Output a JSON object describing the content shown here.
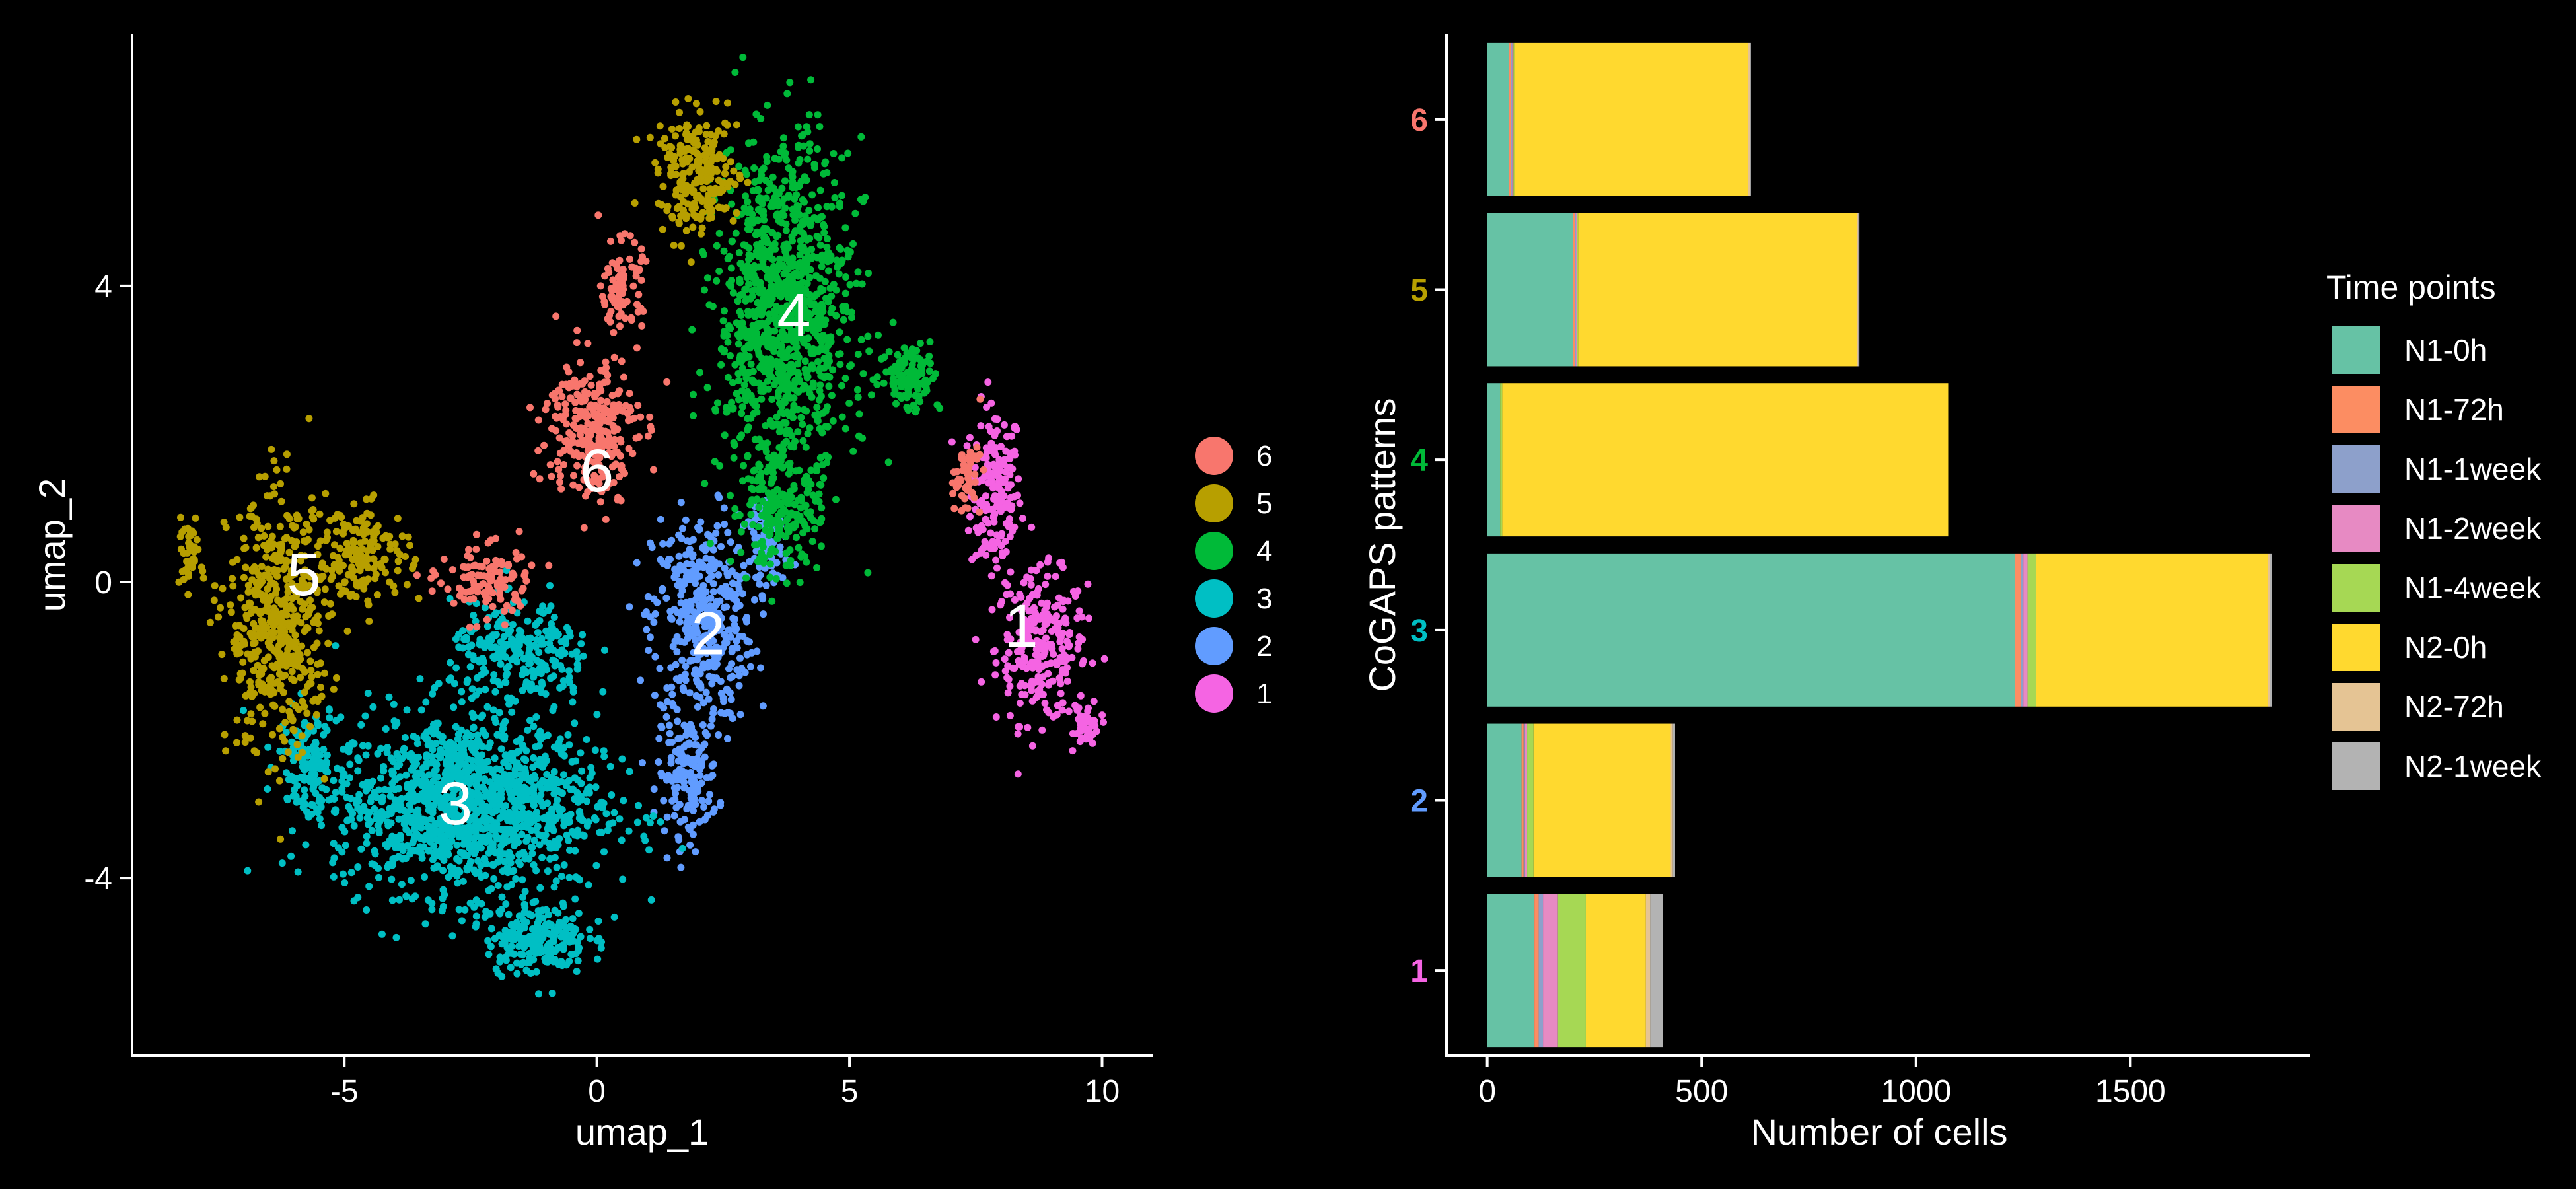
{
  "colors": {
    "background": "#000000",
    "axis": "#ffffff",
    "text": "#ffffff",
    "cluster": {
      "6": "#F8766D",
      "5": "#B79F00",
      "4": "#00BA38",
      "3": "#00BFC4",
      "2": "#619CFF",
      "1": "#F564E3"
    },
    "time_points": [
      "#66C2A5",
      "#FC8D62",
      "#8DA0CB",
      "#E78AC3",
      "#A6D854",
      "#FFD92F",
      "#E5C494",
      "#B3B3B3"
    ]
  },
  "chart_data": [
    {
      "type": "scatter",
      "xlabel": "umap_1",
      "ylabel": "umap_2",
      "xlim": [
        -9.2,
        11.0
      ],
      "ylim": [
        -6.4,
        7.4
      ],
      "xticks": [
        -5,
        0,
        5,
        10
      ],
      "yticks": [
        -4,
        0,
        4
      ],
      "xtick_labels": [
        "-5",
        "0",
        "5",
        "10"
      ],
      "ytick_labels": [
        "-4",
        "0",
        "4"
      ],
      "grid": false,
      "legend": {
        "position": "right",
        "entries": [
          "6",
          "5",
          "4",
          "3",
          "2",
          "1"
        ]
      },
      "clusters": [
        {
          "name": "1",
          "label_pos": [
            8.4,
            -0.6
          ],
          "regions": [
            {
              "center": [
                7.9,
                1.2
              ],
              "spread": [
                0.5,
                1.2
              ],
              "n": 180
            },
            {
              "center": [
                8.8,
                -0.9
              ],
              "spread": [
                0.9,
                1.0
              ],
              "n": 260
            },
            {
              "center": [
                9.7,
                -1.9
              ],
              "spread": [
                0.25,
                0.3
              ],
              "n": 40
            }
          ]
        },
        {
          "name": "2",
          "label_pos": [
            2.2,
            -0.7
          ],
          "regions": [
            {
              "center": [
                2.1,
                -0.5
              ],
              "spread": [
                1.0,
                1.4
              ],
              "n": 420
            },
            {
              "center": [
                1.8,
                -2.6
              ],
              "spread": [
                0.6,
                0.8
              ],
              "n": 160
            },
            {
              "center": [
                3.4,
                0.5
              ],
              "spread": [
                0.4,
                0.5
              ],
              "n": 70
            }
          ]
        },
        {
          "name": "3",
          "label_pos": [
            -2.8,
            -3.0
          ],
          "regions": [
            {
              "center": [
                -2.6,
                -3.0
              ],
              "spread": [
                2.6,
                1.2
              ],
              "n": 1300
            },
            {
              "center": [
                -1.2,
                -4.8
              ],
              "spread": [
                1.0,
                0.5
              ],
              "n": 220
            },
            {
              "center": [
                -1.5,
                -1.0
              ],
              "spread": [
                1.4,
                0.7
              ],
              "n": 260
            },
            {
              "center": [
                -5.7,
                -2.4
              ],
              "spread": [
                0.6,
                0.7
              ],
              "n": 120
            }
          ]
        },
        {
          "name": "4",
          "label_pos": [
            3.9,
            3.6
          ],
          "regions": [
            {
              "center": [
                3.7,
                3.6
              ],
              "spread": [
                1.3,
                2.3
              ],
              "n": 1100
            },
            {
              "center": [
                3.6,
                0.9
              ],
              "spread": [
                0.8,
                0.7
              ],
              "n": 180
            },
            {
              "center": [
                6.2,
                2.8
              ],
              "spread": [
                0.6,
                0.5
              ],
              "n": 110
            }
          ]
        },
        {
          "name": "5",
          "label_pos": [
            -5.8,
            0.1
          ],
          "regions": [
            {
              "center": [
                -6.3,
                -0.6
              ],
              "spread": [
                1.0,
                1.7
              ],
              "n": 520
            },
            {
              "center": [
                -4.6,
                0.4
              ],
              "spread": [
                0.9,
                0.6
              ],
              "n": 160
            },
            {
              "center": [
                2.0,
                5.5
              ],
              "spread": [
                0.8,
                0.8
              ],
              "n": 230
            },
            {
              "center": [
                -8.1,
                0.4
              ],
              "spread": [
                0.25,
                0.4
              ],
              "n": 40
            }
          ]
        },
        {
          "name": "6",
          "label_pos": [
            0.0,
            1.5
          ],
          "regions": [
            {
              "center": [
                -0.1,
                2.1
              ],
              "spread": [
                0.9,
                1.0
              ],
              "n": 280
            },
            {
              "center": [
                0.5,
                4.0
              ],
              "spread": [
                0.4,
                0.6
              ],
              "n": 90
            },
            {
              "center": [
                -2.2,
                0.0
              ],
              "spread": [
                0.9,
                0.5
              ],
              "n": 120
            },
            {
              "center": [
                7.3,
                1.4
              ],
              "spread": [
                0.3,
                0.5
              ],
              "n": 50
            }
          ]
        }
      ]
    },
    {
      "type": "bar",
      "orientation": "horizontal",
      "stacked": true,
      "xlabel": "Number of cells",
      "ylabel": "CoGAPS patterns",
      "xlim": [
        -95,
        1920
      ],
      "xticks": [
        0,
        500,
        1000,
        1500
      ],
      "xtick_labels": [
        "0",
        "500",
        "1000",
        "1500"
      ],
      "grid": false,
      "categories": [
        "6",
        "5",
        "4",
        "3",
        "2",
        "1"
      ],
      "legend": {
        "title": "Time points",
        "position": "right"
      },
      "series": [
        {
          "name": "N1-0h",
          "values": [
            50,
            200,
            30,
            1230,
            80,
            110
          ]
        },
        {
          "name": "N1-72h",
          "values": [
            5,
            5,
            0,
            15,
            5,
            10
          ]
        },
        {
          "name": "N1-1week",
          "values": [
            3,
            2,
            0,
            5,
            3,
            10
          ]
        },
        {
          "name": "N1-2week",
          "values": [
            3,
            3,
            0,
            10,
            5,
            35
          ]
        },
        {
          "name": "N1-4week",
          "values": [
            2,
            2,
            5,
            20,
            15,
            65
          ]
        },
        {
          "name": "N2-0h",
          "values": [
            545,
            650,
            1040,
            540,
            320,
            140
          ]
        },
        {
          "name": "N2-72h",
          "values": [
            5,
            3,
            0,
            5,
            5,
            10
          ]
        },
        {
          "name": "N2-1week",
          "values": [
            2,
            3,
            0,
            5,
            5,
            30
          ]
        }
      ]
    }
  ]
}
